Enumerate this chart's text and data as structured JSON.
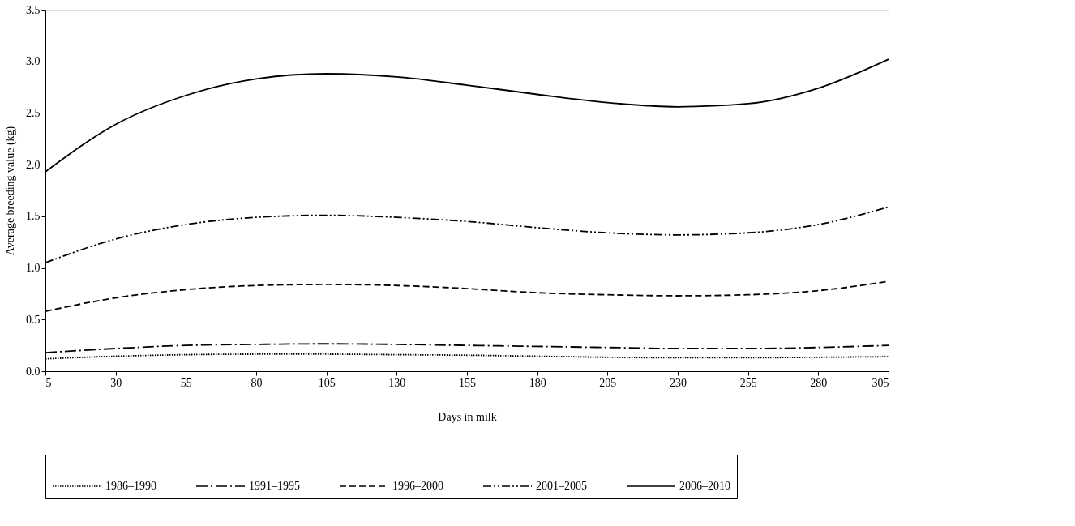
{
  "chart_data": {
    "type": "line",
    "xlabel": "Days in milk",
    "ylabel": "Average breeding value (kg)",
    "x": [
      5,
      30,
      55,
      80,
      105,
      130,
      155,
      180,
      205,
      230,
      255,
      280,
      305
    ],
    "xlim": [
      5,
      305
    ],
    "xticks": [
      5,
      30,
      55,
      80,
      105,
      130,
      155,
      180,
      205,
      230,
      255,
      280,
      305
    ],
    "ylim": [
      0,
      3.5
    ],
    "yticks": [
      {
        "value": 0,
        "label": "0.0"
      },
      {
        "value": 0.5,
        "label": "0.5"
      },
      {
        "value": 1,
        "label": "1.0"
      },
      {
        "value": 1.5,
        "label": "1.5"
      },
      {
        "value": 2,
        "label": "2.0"
      },
      {
        "value": 2.5,
        "label": "2.5"
      },
      {
        "value": 3,
        "label": "3.0"
      },
      {
        "value": 3.5,
        "label": "3.5"
      }
    ],
    "grid": false,
    "legend": "bottom",
    "marker": "none",
    "series": [
      {
        "name": "1986–1990",
        "color": "#000000",
        "line_style": "dotted",
        "values": [
          0.12,
          0.145,
          0.16,
          0.165,
          0.165,
          0.16,
          0.155,
          0.145,
          0.135,
          0.13,
          0.13,
          0.135,
          0.14
        ]
      },
      {
        "name": "1991–1995",
        "color": "#000000",
        "line_style": "dashdot",
        "values": [
          0.18,
          0.22,
          0.25,
          0.26,
          0.265,
          0.26,
          0.25,
          0.24,
          0.23,
          0.22,
          0.22,
          0.23,
          0.25
        ]
      },
      {
        "name": "1996–2000",
        "color": "#000000",
        "line_style": "dashed",
        "values": [
          0.58,
          0.71,
          0.79,
          0.83,
          0.84,
          0.83,
          0.8,
          0.76,
          0.74,
          0.73,
          0.74,
          0.78,
          0.87
        ]
      },
      {
        "name": "2001–2005",
        "color": "#000000",
        "line_style": "dashdotdot",
        "values": [
          1.05,
          1.28,
          1.42,
          1.49,
          1.51,
          1.49,
          1.45,
          1.39,
          1.34,
          1.32,
          1.34,
          1.42,
          1.59
        ]
      },
      {
        "name": "2006–2010",
        "color": "#000000",
        "line_style": "solid",
        "values": [
          1.93,
          2.39,
          2.67,
          2.83,
          2.88,
          2.85,
          2.77,
          2.68,
          2.6,
          2.56,
          2.59,
          2.74,
          3.02
        ]
      }
    ]
  }
}
